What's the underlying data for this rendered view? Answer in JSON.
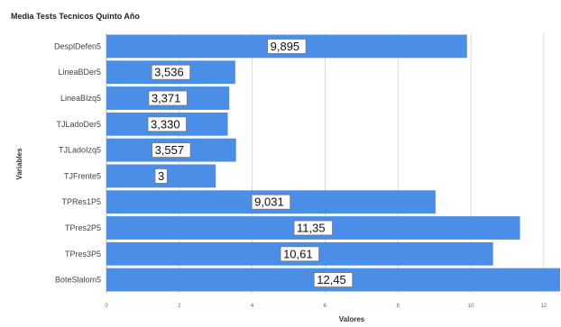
{
  "chart_data": {
    "type": "bar",
    "orientation": "horizontal",
    "title": "Media Tests Tecnicos Quinto Año",
    "xlabel": "Valores",
    "ylabel": "Variables",
    "xlim": [
      0,
      12.45
    ],
    "ticks": [
      "0",
      "2",
      "4",
      "6",
      "8",
      "10",
      "12"
    ],
    "tick_values": [
      0,
      2,
      4,
      6,
      8,
      10,
      12
    ],
    "categories": [
      "DesplDefen5",
      "LineaBDer5",
      "LineaBIzq5",
      "TJLadoDer5",
      "TJLadoIzq5",
      "TJFrente5",
      "TPRes1P5",
      "TPres2P5",
      "TPres3P5",
      "BoteSlalom5"
    ],
    "values": [
      9.895,
      3.536,
      3.371,
      3.33,
      3.557,
      3,
      9.031,
      11.35,
      10.61,
      12.45
    ],
    "data_labels": [
      "9,895",
      "3,536",
      "3,371",
      "3,330",
      "3,557",
      "3",
      "9,031",
      "11,35",
      "10,61",
      "12,45"
    ],
    "bar_color": "#4a8ee8",
    "grid": true,
    "legend": "none"
  }
}
